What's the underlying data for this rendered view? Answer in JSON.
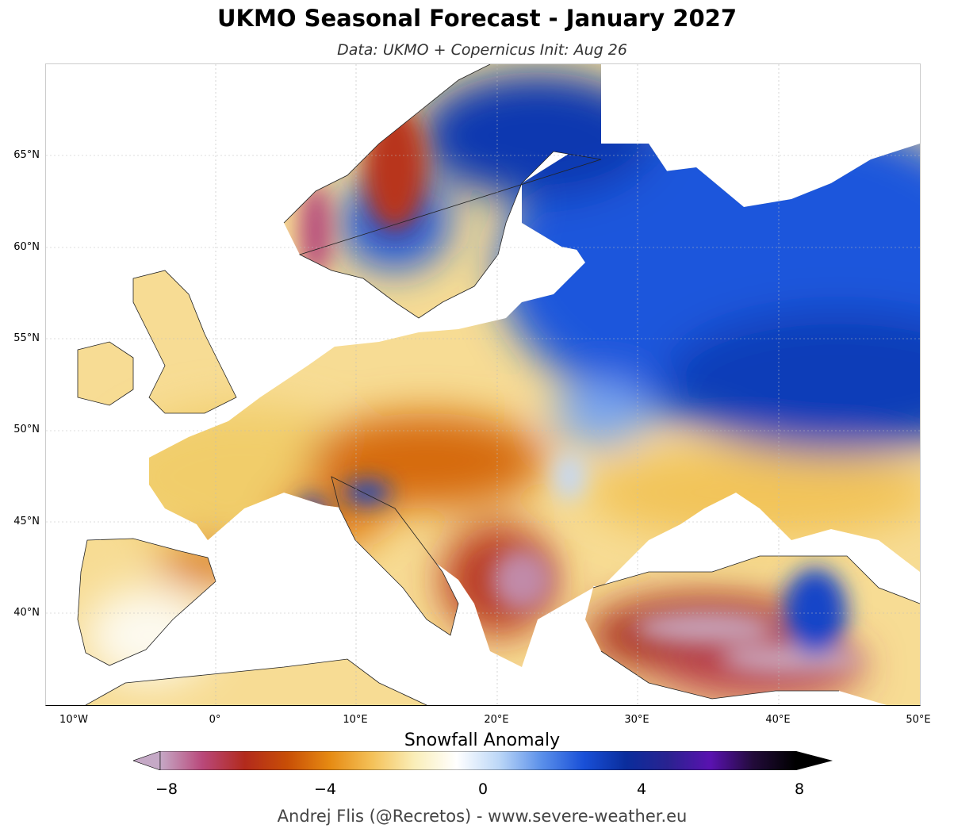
{
  "title": "UKMO Seasonal Forecast - January 2027",
  "subtitle": "Data: UKMO + Copernicus   Init: Aug 26",
  "map": {
    "projection": "equirectangular",
    "lon_range": [
      -12,
      50
    ],
    "lat_range": [
      35,
      70
    ],
    "lat_labels": [
      "65°N",
      "60°N",
      "55°N",
      "50°N",
      "45°N",
      "40°N"
    ],
    "lon_labels": [
      "10°W",
      "0°",
      "10°E",
      "20°E",
      "30°E",
      "40°E",
      "50°E"
    ],
    "field": "Snowfall Anomaly",
    "pattern": [
      {
        "region": "Norway coast",
        "anomaly": -7
      },
      {
        "region": "Sweden / northern Finland",
        "anomaly": 3
      },
      {
        "region": "Western Russia / Baltic",
        "anomaly": 3
      },
      {
        "region": "Central Europe / Alps",
        "anomaly": -4
      },
      {
        "region": "Western Alps",
        "anomaly": 3
      },
      {
        "region": "Balkans",
        "anomaly": -7
      },
      {
        "region": "Turkey",
        "anomaly": -7
      },
      {
        "region": "Caucasus",
        "anomaly": 4
      }
    ]
  },
  "colorbar": {
    "label": "Snowfall Anomaly",
    "min": -8,
    "max": 8,
    "ticks": [
      "−8",
      "−4",
      "0",
      "4",
      "8"
    ],
    "extend": "both",
    "colors": [
      "#c5a9c6",
      "#b9487a",
      "#b22a1c",
      "#c84e06",
      "#e68a12",
      "#f4c158",
      "#faeeb8",
      "#ffffff",
      "#bcd7f7",
      "#5b90ea",
      "#1950d8",
      "#0a2d9c",
      "#2a2290",
      "#5a12b0",
      "#220b3a",
      "#000000"
    ]
  },
  "credit": "Andrej Flis (@Recretos) - www.severe-weather.eu"
}
